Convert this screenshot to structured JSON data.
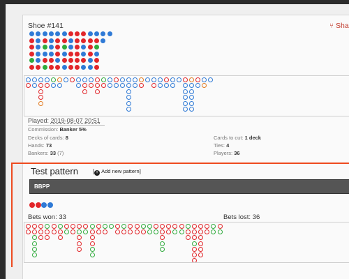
{
  "shoe": {
    "title": "Shoe #141",
    "share_label": "Sha",
    "big_road_grid": [
      [
        "b",
        "b",
        "b",
        "b",
        "b",
        "b",
        "r",
        "r",
        "r",
        "b",
        "b",
        "b",
        "b"
      ],
      [
        "r",
        "b",
        "r",
        "b",
        "r",
        "r",
        "b",
        "r",
        "r",
        "r",
        "r",
        "b",
        ""
      ],
      [
        "r",
        "b",
        "g",
        "b",
        "r",
        "g",
        "b",
        "r",
        "b",
        "r",
        "g",
        "",
        ""
      ],
      [
        "r",
        "b",
        "b",
        "b",
        "r",
        "b",
        "r",
        "r",
        "b",
        "r",
        "b",
        "",
        ""
      ],
      [
        "g",
        "b",
        "r",
        "r",
        "b",
        "r",
        "r",
        "r",
        "r",
        "b",
        "r",
        "",
        ""
      ],
      [
        "r",
        "r",
        "g",
        "r",
        "r",
        "b",
        "r",
        "r",
        "b",
        "b",
        "r",
        "",
        ""
      ]
    ],
    "road_columns": [
      [
        "b",
        "r"
      ],
      [
        "b",
        "b"
      ],
      [
        "b",
        "r",
        "r",
        "r",
        "o"
      ],
      [
        "b",
        "r"
      ],
      [
        "g",
        "b"
      ],
      [
        "o",
        "b"
      ],
      [
        "b"
      ],
      [
        "r"
      ],
      [
        "b",
        "b"
      ],
      [
        "b",
        "r",
        "r"
      ],
      [
        "b",
        "r"
      ],
      [
        "r",
        "r",
        "r"
      ],
      [
        "g",
        "r"
      ],
      [
        "b",
        "b"
      ],
      [
        "r",
        "b"
      ],
      [
        "b",
        "b"
      ],
      [
        "b",
        "b",
        "b",
        "b",
        "b",
        "b"
      ],
      [
        "b",
        "b"
      ],
      [
        "o",
        "r"
      ],
      [
        "b"
      ],
      [
        "b",
        "r"
      ],
      [
        "b",
        "b"
      ],
      [
        "r",
        "b"
      ],
      [
        "b",
        "b"
      ],
      [
        "b"
      ],
      [
        "r",
        "b",
        "b",
        "b",
        "b",
        "b"
      ],
      [
        "o",
        "b",
        "b",
        "b",
        "b",
        "b"
      ],
      [
        "r",
        "b"
      ],
      [
        "b",
        "o"
      ],
      [
        "b"
      ]
    ],
    "played_label": "Played:",
    "played_value": "2019-08-07 20:51",
    "commission_label": "Commission:",
    "commission_value": "Banker 5%",
    "decks_label": "Decks of cards:",
    "decks_value": "8",
    "hands_label": "Hands:",
    "hands_value": "73",
    "bankers_label": "Bankers:",
    "bankers_value": "33",
    "bankers_extra": "(7)",
    "cut_label": "Cards to cut:",
    "cut_value": "1 deck",
    "ties_label": "Ties:",
    "ties_value": "4",
    "players_label": "Players:",
    "players_value": "36"
  },
  "pattern": {
    "title": "Test pattern",
    "add_label": "Add new pattern]",
    "input_value": "BBPP",
    "sequence": [
      "r",
      "r",
      "b",
      "b"
    ],
    "bets_won_label": "Bets won:",
    "bets_won_value": "33",
    "bets_lost_label": "Bets lost:",
    "bets_lost_value": "36",
    "result_columns": [
      [
        "r",
        "r"
      ],
      [
        "r",
        "r",
        "g",
        "g",
        "g",
        "g"
      ],
      [
        "r",
        "r",
        "r"
      ],
      [
        "g",
        "r",
        "r"
      ],
      [
        "r",
        "r"
      ],
      [
        "g",
        "r",
        "r"
      ],
      [
        "r",
        "g"
      ],
      [
        "r",
        "r"
      ],
      [
        "r",
        "g",
        "r",
        "r",
        "r"
      ],
      [
        "r",
        "g"
      ],
      [
        "g",
        "r",
        "r",
        "r",
        "g",
        "g"
      ],
      [
        "r",
        "r"
      ],
      [
        "g",
        "r"
      ],
      [
        "g"
      ],
      [
        "r",
        "r"
      ],
      [
        "g",
        "r"
      ],
      [
        "r",
        "r"
      ],
      [
        "r",
        "r"
      ],
      [
        "g",
        "r"
      ],
      [
        "g",
        "g"
      ],
      [
        "r",
        "g"
      ],
      [
        "r",
        "r",
        "r",
        "g",
        "g"
      ],
      [
        "r",
        "r"
      ],
      [
        "r",
        "g"
      ],
      [
        "r",
        "g"
      ],
      [
        "g",
        "r",
        "r"
      ],
      [
        "r",
        "r",
        "r",
        "g",
        "r",
        "r",
        "r"
      ],
      [
        "r",
        "r",
        "r",
        "r",
        "r",
        "r"
      ],
      [
        "r",
        "r"
      ],
      [
        "g",
        "g"
      ],
      [
        "r",
        "g"
      ]
    ]
  },
  "colors": {
    "red": "#e2262a",
    "blue": "#2f7ad6",
    "green": "#2fab3c",
    "orange": "#e27a1f",
    "accent_frame": "#ee4a1f",
    "share_red": "#c0392b"
  }
}
